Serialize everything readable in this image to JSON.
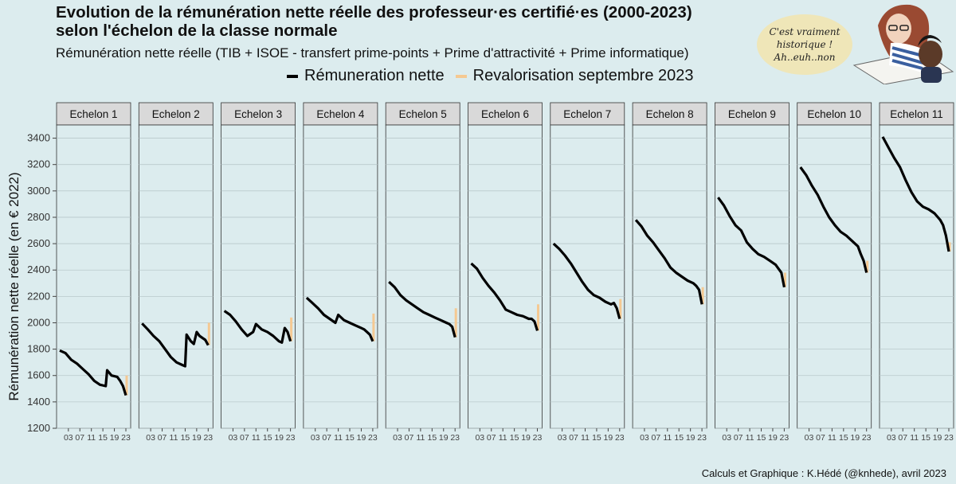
{
  "header": {
    "title_line1": "Evolution de la rémunération nette réelle des professeur·es certifié·es (2000-2023)",
    "title_line2": "selon l'échelon de la classe normale",
    "subtitle": "Rémunération nette réelle (TIB + ISOE - transfert prime-points + Prime d'attractivité + Prime informatique)"
  },
  "legend": {
    "items": [
      {
        "label": "Rémuneration nette",
        "color": "#000000"
      },
      {
        "label": "Revalorisation septembre 2023",
        "color": "#f5c992"
      }
    ]
  },
  "speech_bubble": {
    "lines": [
      "C'est vraiment",
      "historique !",
      "Ah..euh..non"
    ]
  },
  "caption": "Calculs et Graphique : K.Hédé (@knhede), avril 2023",
  "colors": {
    "background": "#dcecee",
    "panel_header": "#d9d9d9",
    "grid": "#b9c9cb",
    "line": "#000000",
    "revalorisation": "#f5c992"
  },
  "chart_data": {
    "type": "line",
    "facet_by": "Echelon",
    "ylabel": "Rémunération nette réelle (en € 2022)",
    "ylim": [
      1200,
      3500
    ],
    "yticks": [
      1200,
      1400,
      1600,
      1800,
      2000,
      2200,
      2400,
      2600,
      2800,
      3000,
      3200,
      3400
    ],
    "x_range": [
      2000,
      2023
    ],
    "xtick_values": [
      2003,
      2007,
      2011,
      2015,
      2019,
      2023
    ],
    "xtick_labels": [
      "03",
      "07",
      "11",
      "15",
      "19",
      "23"
    ],
    "legend_position": "top",
    "panels": [
      {
        "label": "Echelon 1",
        "points": [
          [
            2000,
            1790
          ],
          [
            2002,
            1770
          ],
          [
            2004,
            1720
          ],
          [
            2006,
            1690
          ],
          [
            2008,
            1650
          ],
          [
            2010,
            1610
          ],
          [
            2012,
            1560
          ],
          [
            2014,
            1530
          ],
          [
            2016,
            1520
          ],
          [
            2016.5,
            1640
          ],
          [
            2018,
            1600
          ],
          [
            2020,
            1590
          ],
          [
            2021,
            1560
          ],
          [
            2022,
            1520
          ],
          [
            2023,
            1450
          ]
        ],
        "revalorisation": [
          1450,
          1600
        ]
      },
      {
        "label": "Echelon 2",
        "points": [
          [
            2000,
            1995
          ],
          [
            2002,
            1950
          ],
          [
            2004,
            1900
          ],
          [
            2006,
            1860
          ],
          [
            2008,
            1800
          ],
          [
            2010,
            1740
          ],
          [
            2012,
            1700
          ],
          [
            2014,
            1680
          ],
          [
            2015,
            1670
          ],
          [
            2015.5,
            1910
          ],
          [
            2017,
            1860
          ],
          [
            2018,
            1840
          ],
          [
            2019,
            1930
          ],
          [
            2020,
            1900
          ],
          [
            2022,
            1870
          ],
          [
            2023,
            1830
          ]
        ],
        "revalorisation": [
          1830,
          2000
        ]
      },
      {
        "label": "Echelon 3",
        "points": [
          [
            2000,
            2090
          ],
          [
            2002,
            2060
          ],
          [
            2004,
            2010
          ],
          [
            2006,
            1950
          ],
          [
            2008,
            1900
          ],
          [
            2010,
            1930
          ],
          [
            2011,
            1990
          ],
          [
            2013,
            1950
          ],
          [
            2015,
            1930
          ],
          [
            2017,
            1900
          ],
          [
            2019,
            1860
          ],
          [
            2020,
            1850
          ],
          [
            2021,
            1960
          ],
          [
            2022,
            1930
          ],
          [
            2023,
            1860
          ]
        ],
        "revalorisation": [
          1860,
          2040
        ]
      },
      {
        "label": "Echelon 4",
        "points": [
          [
            2000,
            2190
          ],
          [
            2002,
            2150
          ],
          [
            2004,
            2110
          ],
          [
            2006,
            2060
          ],
          [
            2008,
            2030
          ],
          [
            2010,
            2000
          ],
          [
            2011,
            2060
          ],
          [
            2013,
            2020
          ],
          [
            2015,
            2000
          ],
          [
            2017,
            1980
          ],
          [
            2019,
            1960
          ],
          [
            2020,
            1950
          ],
          [
            2021,
            1930
          ],
          [
            2022,
            1910
          ],
          [
            2023,
            1860
          ]
        ],
        "revalorisation": [
          1860,
          2070
        ]
      },
      {
        "label": "Echelon 5",
        "points": [
          [
            2000,
            2310
          ],
          [
            2002,
            2270
          ],
          [
            2004,
            2210
          ],
          [
            2006,
            2170
          ],
          [
            2008,
            2140
          ],
          [
            2010,
            2110
          ],
          [
            2012,
            2080
          ],
          [
            2014,
            2060
          ],
          [
            2016,
            2040
          ],
          [
            2018,
            2020
          ],
          [
            2020,
            2000
          ],
          [
            2021,
            1990
          ],
          [
            2022,
            1970
          ],
          [
            2023,
            1890
          ]
        ],
        "revalorisation": [
          1890,
          2110
        ]
      },
      {
        "label": "Echelon 6",
        "points": [
          [
            2000,
            2450
          ],
          [
            2002,
            2410
          ],
          [
            2004,
            2340
          ],
          [
            2006,
            2280
          ],
          [
            2008,
            2230
          ],
          [
            2010,
            2170
          ],
          [
            2012,
            2100
          ],
          [
            2014,
            2080
          ],
          [
            2016,
            2060
          ],
          [
            2018,
            2050
          ],
          [
            2020,
            2030
          ],
          [
            2021,
            2030
          ],
          [
            2022,
            2010
          ],
          [
            2023,
            1940
          ]
        ],
        "revalorisation": [
          1940,
          2140
        ]
      },
      {
        "label": "Echelon 7",
        "points": [
          [
            2000,
            2600
          ],
          [
            2002,
            2560
          ],
          [
            2004,
            2510
          ],
          [
            2006,
            2450
          ],
          [
            2008,
            2380
          ],
          [
            2010,
            2310
          ],
          [
            2012,
            2250
          ],
          [
            2014,
            2210
          ],
          [
            2016,
            2190
          ],
          [
            2018,
            2160
          ],
          [
            2020,
            2140
          ],
          [
            2021,
            2150
          ],
          [
            2022,
            2110
          ],
          [
            2023,
            2030
          ]
        ],
        "revalorisation": [
          2030,
          2180
        ]
      },
      {
        "label": "Echelon 8",
        "points": [
          [
            2000,
            2780
          ],
          [
            2002,
            2730
          ],
          [
            2004,
            2660
          ],
          [
            2006,
            2610
          ],
          [
            2008,
            2550
          ],
          [
            2010,
            2490
          ],
          [
            2012,
            2420
          ],
          [
            2014,
            2380
          ],
          [
            2016,
            2350
          ],
          [
            2018,
            2320
          ],
          [
            2020,
            2300
          ],
          [
            2021,
            2280
          ],
          [
            2022,
            2250
          ],
          [
            2023,
            2140
          ]
        ],
        "revalorisation": [
          2140,
          2270
        ]
      },
      {
        "label": "Echelon 9",
        "points": [
          [
            2000,
            2950
          ],
          [
            2002,
            2890
          ],
          [
            2004,
            2810
          ],
          [
            2006,
            2740
          ],
          [
            2008,
            2700
          ],
          [
            2010,
            2610
          ],
          [
            2012,
            2560
          ],
          [
            2014,
            2520
          ],
          [
            2016,
            2500
          ],
          [
            2018,
            2470
          ],
          [
            2020,
            2440
          ],
          [
            2021,
            2410
          ],
          [
            2022,
            2380
          ],
          [
            2023,
            2270
          ]
        ],
        "revalorisation": [
          2270,
          2380
        ]
      },
      {
        "label": "Echelon 10",
        "points": [
          [
            2000,
            3180
          ],
          [
            2002,
            3120
          ],
          [
            2004,
            3040
          ],
          [
            2006,
            2970
          ],
          [
            2008,
            2880
          ],
          [
            2010,
            2800
          ],
          [
            2012,
            2740
          ],
          [
            2014,
            2690
          ],
          [
            2016,
            2660
          ],
          [
            2018,
            2620
          ],
          [
            2020,
            2580
          ],
          [
            2021,
            2520
          ],
          [
            2022,
            2470
          ],
          [
            2023,
            2380
          ]
        ],
        "revalorisation": [
          2380,
          2470
        ]
      },
      {
        "label": "Echelon 11",
        "points": [
          [
            2000,
            3410
          ],
          [
            2002,
            3330
          ],
          [
            2004,
            3250
          ],
          [
            2006,
            3180
          ],
          [
            2008,
            3080
          ],
          [
            2010,
            2990
          ],
          [
            2012,
            2920
          ],
          [
            2014,
            2880
          ],
          [
            2016,
            2860
          ],
          [
            2018,
            2830
          ],
          [
            2020,
            2780
          ],
          [
            2021,
            2740
          ],
          [
            2022,
            2660
          ],
          [
            2023,
            2540
          ]
        ],
        "revalorisation": [
          2540,
          2610
        ]
      }
    ]
  }
}
